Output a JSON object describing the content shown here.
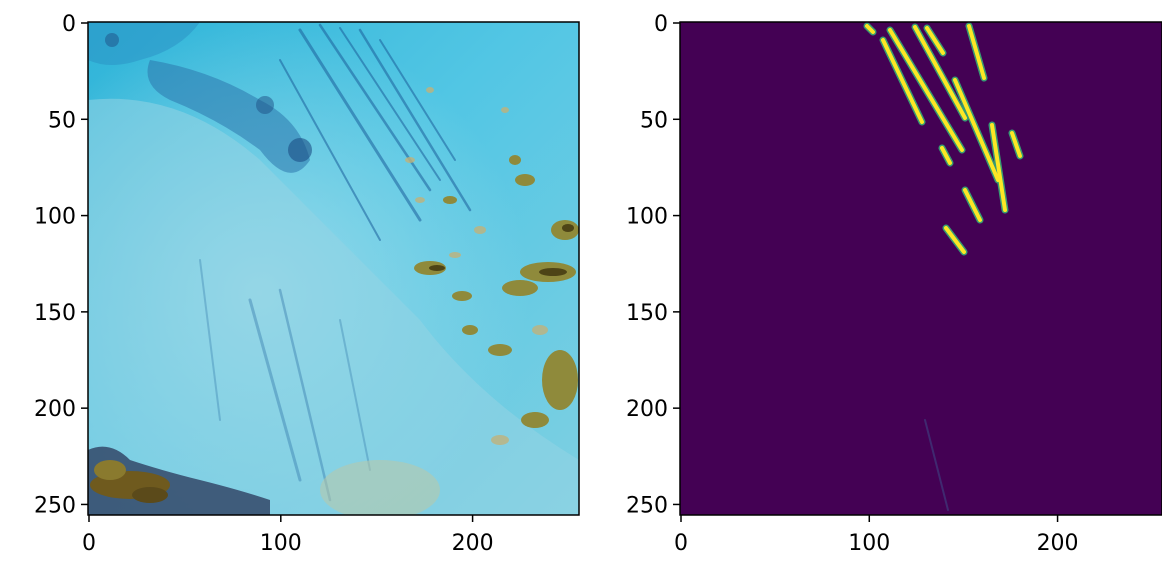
{
  "figure": {
    "panels": [
      {
        "name": "satellite-image-panel",
        "image_description": "false-color satellite image, cyan cloud field with darker blue contrail streaks and olive/brown patches",
        "x_ticks": [
          0,
          100,
          200
        ],
        "y_ticks": [
          0,
          50,
          100,
          150,
          200,
          250
        ],
        "x_range": [
          0,
          256
        ],
        "y_range": [
          256,
          0
        ],
        "colors": {
          "base": "#3ec0e0",
          "pale": "#8fd7e6",
          "dark_streak": "#1c5f9c",
          "olive": "#8a8a3a",
          "brown": "#5b4a1a"
        }
      },
      {
        "name": "contrail-mask-panel",
        "image_description": "binary segmentation mask, dark purple background with yellow contrail line segments",
        "x_ticks": [
          0,
          100,
          200
        ],
        "y_ticks": [
          0,
          50,
          100,
          150,
          200,
          250
        ],
        "x_range": [
          0,
          256
        ],
        "y_range": [
          256,
          0
        ],
        "colors": {
          "background": "#440154",
          "mask": "#fde725",
          "edge": "#35b779"
        }
      }
    ]
  }
}
